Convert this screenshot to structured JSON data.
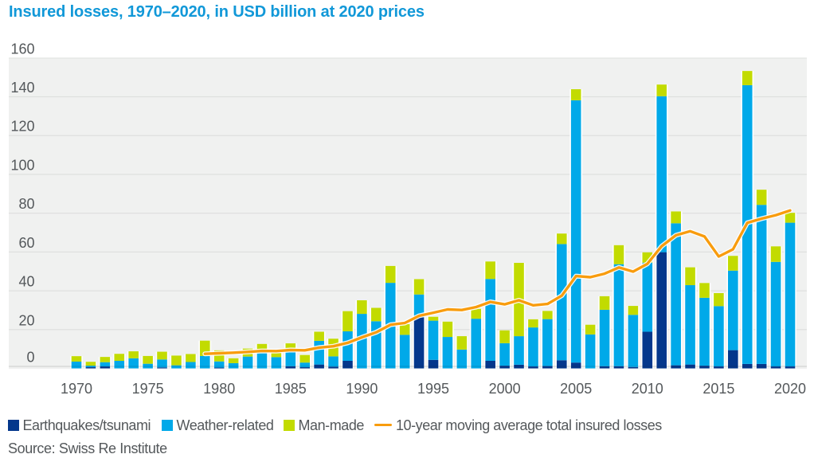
{
  "title": "Insured losses, 1970–2020, in USD billion at 2020 prices",
  "source": "Source: Swiss Re Institute",
  "colors": {
    "title": "#1198d8",
    "earthquake": "#04378c",
    "weather": "#00a9e9",
    "man_made": "#c2db00",
    "moving_average": "#f89c0e",
    "axis_text": "#54585b",
    "panel_background": "#f0f1f0",
    "gridline": "rgba(0,0,0,0.075)",
    "page_background": "#ffffff"
  },
  "legend": [
    {
      "label": "Earthquakes/tsunami",
      "swatch": "square",
      "color_key": "earthquake"
    },
    {
      "label": "Weather-related",
      "swatch": "square",
      "color_key": "weather"
    },
    {
      "label": "Man-made",
      "swatch": "square",
      "color_key": "man_made"
    },
    {
      "label": "10-year moving average total insured losses",
      "swatch": "line",
      "color_key": "moving_average"
    }
  ],
  "chart_data": {
    "type": "bar",
    "stacked": true,
    "title": "Insured losses, 1970–2020, in USD billion at 2020 prices",
    "xlabel": "",
    "ylabel": "USD billion at 2020 prices",
    "ylim": [
      0,
      160
    ],
    "y_ticks": [
      0,
      20,
      40,
      60,
      80,
      100,
      120,
      140,
      160
    ],
    "x_tick_years": [
      1970,
      1975,
      1980,
      1985,
      1990,
      1995,
      2000,
      2005,
      2010,
      2015,
      2020
    ],
    "grid": true,
    "legend_position": "bottom",
    "years": [
      1970,
      1971,
      1972,
      1973,
      1974,
      1975,
      1976,
      1977,
      1978,
      1979,
      1980,
      1981,
      1982,
      1983,
      1984,
      1985,
      1986,
      1987,
      1988,
      1989,
      1990,
      1991,
      1992,
      1993,
      1994,
      1995,
      1996,
      1997,
      1998,
      1999,
      2000,
      2001,
      2002,
      2003,
      2004,
      2005,
      2006,
      2007,
      2008,
      2009,
      2010,
      2011,
      2012,
      2013,
      2014,
      2015,
      2016,
      2017,
      2018,
      2019,
      2020
    ],
    "series": [
      {
        "name": "Earthquakes/tsunami",
        "color_key": "earthquake",
        "values": [
          0,
          0.6,
          1.0,
          0,
          0,
          0,
          0.5,
          0,
          0,
          0,
          0.4,
          0,
          0,
          0,
          0,
          1.1,
          0.6,
          2.0,
          0.9,
          3.9,
          0,
          0,
          0,
          0,
          26.3,
          4.4,
          0,
          0,
          0,
          3.9,
          1.4,
          1.9,
          1.0,
          1.2,
          4.2,
          3.0,
          0,
          1.1,
          1.1,
          0.7,
          18.9,
          59.9,
          1.6,
          2.0,
          1.4,
          1.0,
          9.4,
          2.3,
          2.3,
          1.0,
          1.0
        ]
      },
      {
        "name": "Weather-related",
        "color_key": "weather",
        "values": [
          3.5,
          0.8,
          2.2,
          3.9,
          5.2,
          2.4,
          4.1,
          1.6,
          3.3,
          6.4,
          3.2,
          2.7,
          6.1,
          8.5,
          5.8,
          8.0,
          2.4,
          12.2,
          5.3,
          15.2,
          28.1,
          24.3,
          44.1,
          17.3,
          11.8,
          20.2,
          16.2,
          9.7,
          25.6,
          42.2,
          11.6,
          14.7,
          20.1,
          24.2,
          59.9,
          135.2,
          17.5,
          29.1,
          52.6,
          26.9,
          35.6,
          80.4,
          73.2,
          40.9,
          35.0,
          31.1,
          41.0,
          143.7,
          82.0,
          53.9,
          74.1
        ]
      },
      {
        "name": "Man-made",
        "color_key": "man_made",
        "values": [
          2.8,
          2.0,
          2.7,
          3.6,
          3.6,
          4.0,
          4.0,
          5.0,
          4.1,
          7.9,
          5.7,
          2.5,
          4.1,
          4.1,
          2.2,
          3.8,
          3.9,
          4.7,
          9.1,
          10.4,
          7.0,
          6.9,
          8.7,
          5.5,
          7.9,
          2.0,
          7.9,
          6.9,
          5.1,
          9.0,
          6.6,
          37.8,
          4.2,
          4.2,
          5.4,
          5.7,
          5.0,
          7.0,
          9.8,
          4.6,
          5.3,
          6.0,
          6.1,
          9.2,
          7.6,
          6.7,
          7.6,
          7.3,
          7.8,
          8.0,
          5.1
        ]
      }
    ],
    "moving_average": {
      "name": "10-year moving average total insured losses",
      "color_key": "moving_average",
      "start_year": 1979,
      "values": [
        7.5,
        7.8,
        8.1,
        8.5,
        9.0,
        8.9,
        9.5,
        9.3,
        10.7,
        11.4,
        13.2,
        16.0,
        18.6,
        22.5,
        23.4,
        27.1,
        28.7,
        30.4,
        30.1,
        31.6,
        34.3,
        33.0,
        35.1,
        32.5,
        33.2,
        37.5,
        47.6,
        47.0,
        48.8,
        52.0,
        49.9,
        53.9,
        63.0,
        68.6,
        70.7,
        68.0,
        57.7,
        61.4,
        75.0,
        77.2,
        79.0,
        81.4
      ]
    }
  }
}
